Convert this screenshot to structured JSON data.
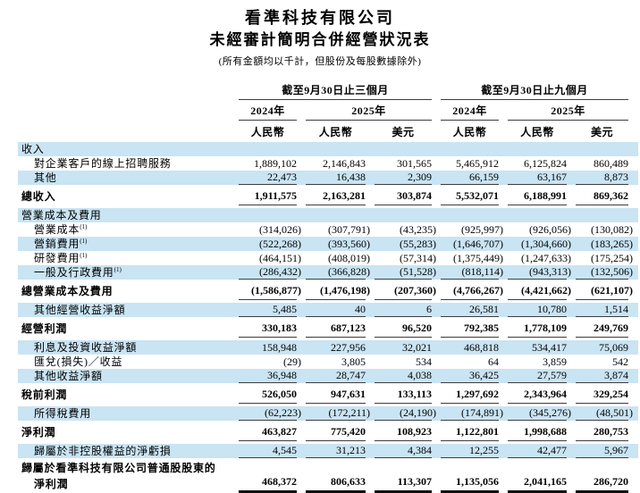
{
  "title": "看準科技有限公司",
  "subtitle": "未經審計簡明合併經營狀況表",
  "note": "(所有金額均以千計，但股份及每股數據除外)",
  "colors": {
    "row_band": "#c9e4f3",
    "rule_line": "#3d3d3d",
    "total_rule": "#111111",
    "text": "#000000",
    "background": "#ffffff"
  },
  "table": {
    "period_groups": [
      {
        "label": "截至9月30日止三個月"
      },
      {
        "label": "截至9月30日止九個月"
      }
    ],
    "year_headers": [
      "2024年",
      "2025年",
      "2024年",
      "2025年"
    ],
    "currency_headers": [
      "人民幣",
      "人民幣",
      "美元",
      "人民幣",
      "人民幣",
      "美元"
    ],
    "rows": [
      {
        "label": "收入",
        "band": true
      },
      {
        "label": "對企業客戶的線上招聘服務",
        "indent": true,
        "values": [
          "1,889,102",
          "2,146,843",
          "301,565",
          "5,465,912",
          "6,125,824",
          "860,489"
        ]
      },
      {
        "label": "其他",
        "band": true,
        "indent": true,
        "rule": "single",
        "values": [
          "22,473",
          "16,438",
          "2,309",
          "66,159",
          "63,167",
          "8,873"
        ]
      },
      {
        "label": "總收入",
        "bold": true,
        "rule": "single",
        "values": [
          "1,911,575",
          "2,163,281",
          "303,874",
          "5,532,071",
          "6,188,991",
          "869,362"
        ]
      },
      {
        "label": "營業成本及費用",
        "band": true
      },
      {
        "label": "營業成本",
        "sup": "(1)",
        "indent": true,
        "values": [
          "(314,026)",
          "(307,791)",
          "(43,235)",
          "(925,997)",
          "(926,056)",
          "(130,082)"
        ]
      },
      {
        "label": "營銷費用",
        "sup": "(1)",
        "band": true,
        "indent": true,
        "values": [
          "(522,268)",
          "(393,560)",
          "(55,283)",
          "(1,646,707)",
          "(1,304,660)",
          "(183,265)"
        ]
      },
      {
        "label": "研發費用",
        "sup": "(1)",
        "indent": true,
        "values": [
          "(464,151)",
          "(408,019)",
          "(57,314)",
          "(1,375,449)",
          "(1,247,633)",
          "(175,254)"
        ]
      },
      {
        "label": "一般及行政費用",
        "sup": "(1)",
        "band": true,
        "indent": true,
        "rule": "single",
        "values": [
          "(286,432)",
          "(366,828)",
          "(51,528)",
          "(818,114)",
          "(943,313)",
          "(132,506)"
        ]
      },
      {
        "label": "總營業成本及費用",
        "bold": true,
        "rule": "single",
        "values": [
          "(1,586,877)",
          "(1,476,198)",
          "(207,360)",
          "(4,766,267)",
          "(4,421,662)",
          "(621,107)"
        ]
      },
      {
        "label": "其他經營收益淨額",
        "band": true,
        "indent": true,
        "rule": "single",
        "values": [
          "5,485",
          "40",
          "6",
          "26,581",
          "10,780",
          "1,514"
        ]
      },
      {
        "label": "經營利潤",
        "bold": true,
        "rule": "single",
        "values": [
          "330,183",
          "687,123",
          "96,520",
          "792,385",
          "1,778,109",
          "249,769"
        ]
      },
      {
        "label": "利息及投資收益淨額",
        "band": true,
        "indent": true,
        "values": [
          "158,948",
          "227,956",
          "32,021",
          "468,818",
          "534,417",
          "75,069"
        ]
      },
      {
        "label": "匯兌(損失)／收益",
        "indent": true,
        "values": [
          "(29)",
          "3,805",
          "534",
          "64",
          "3,859",
          "542"
        ]
      },
      {
        "label": "其他收益淨額",
        "band": true,
        "indent": true,
        "rule": "single",
        "values": [
          "36,948",
          "28,747",
          "4,038",
          "36,425",
          "27,579",
          "3,874"
        ]
      },
      {
        "label": "稅前利潤",
        "bold": true,
        "rule": "single",
        "values": [
          "526,050",
          "947,631",
          "133,113",
          "1,297,692",
          "2,343,964",
          "329,254"
        ]
      },
      {
        "label": "所得稅費用",
        "band": true,
        "indent": true,
        "rule": "single",
        "values": [
          "(62,223)",
          "(172,211)",
          "(24,190)",
          "(174,891)",
          "(345,276)",
          "(48,501)"
        ]
      },
      {
        "label": "淨利潤",
        "bold": true,
        "rule": "single",
        "values": [
          "463,827",
          "775,420",
          "108,923",
          "1,122,801",
          "1,998,688",
          "280,753"
        ]
      },
      {
        "label": "歸屬於非控股權益的淨虧損",
        "band": true,
        "indent": true,
        "rule": "single",
        "values": [
          "4,545",
          "31,213",
          "4,384",
          "12,255",
          "42,477",
          "5,967"
        ]
      },
      {
        "label": "歸屬於看準科技有限公司普通股股東的",
        "bold": true
      },
      {
        "label": "淨利潤",
        "bold": true,
        "indent": true,
        "rule": "thick",
        "values": [
          "468,372",
          "806,633",
          "113,307",
          "1,135,056",
          "2,041,165",
          "286,720"
        ]
      }
    ]
  }
}
